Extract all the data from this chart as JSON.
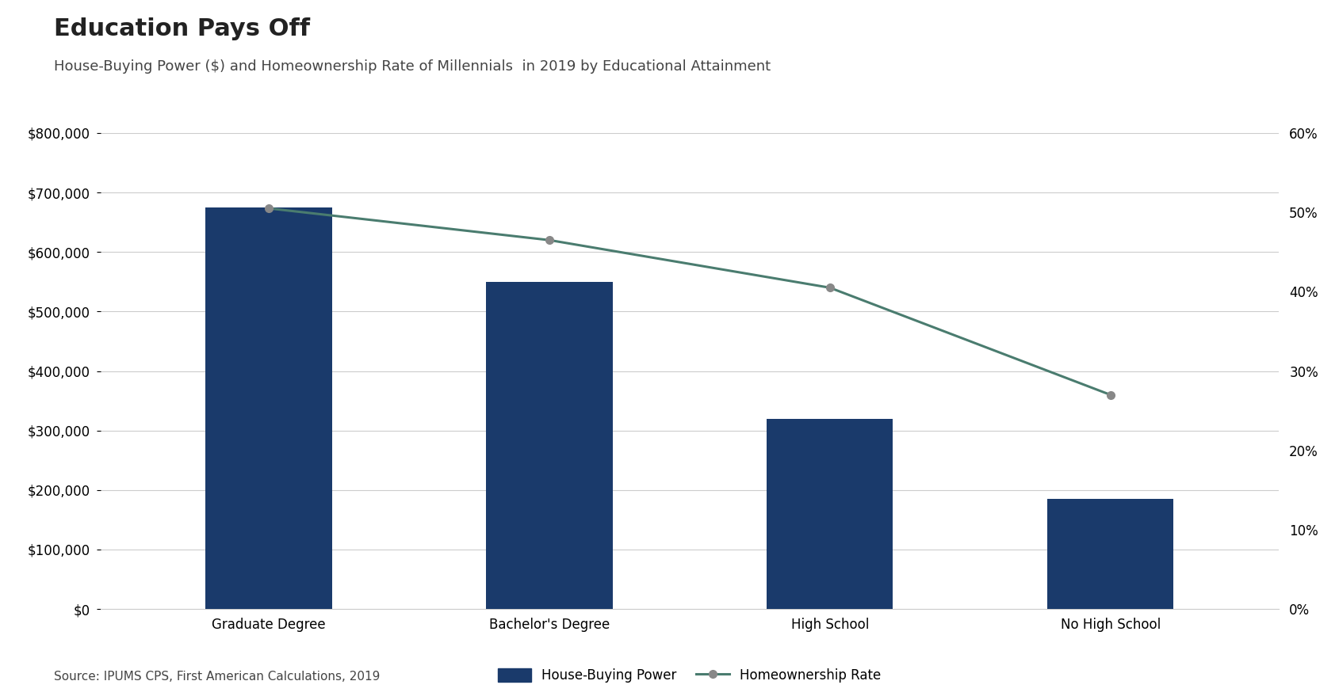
{
  "title": "Education Pays Off",
  "subtitle": "House-Buying Power ($) and Homeownership Rate of Millennials  in 2019 by Educational Attainment",
  "source": "Source: IPUMS CPS, First American Calculations, 2019",
  "categories": [
    "Graduate Degree",
    "Bachelor's Degree",
    "High School",
    "No High School"
  ],
  "bar_values": [
    675000,
    550000,
    320000,
    185000
  ],
  "line_values": [
    0.505,
    0.465,
    0.405,
    0.27
  ],
  "bar_color": "#1a3a6b",
  "line_color": "#4a7c6f",
  "marker_color": "#888888",
  "ylim_left": [
    0,
    800000
  ],
  "ylim_right": [
    0,
    0.6
  ],
  "yticks_left": [
    0,
    100000,
    200000,
    300000,
    400000,
    500000,
    600000,
    700000,
    800000
  ],
  "yticks_right": [
    0.0,
    0.1,
    0.2,
    0.3,
    0.4,
    0.5,
    0.6
  ],
  "title_fontsize": 22,
  "subtitle_fontsize": 13,
  "source_fontsize": 11,
  "tick_fontsize": 12,
  "legend_fontsize": 12,
  "background_color": "#ffffff"
}
